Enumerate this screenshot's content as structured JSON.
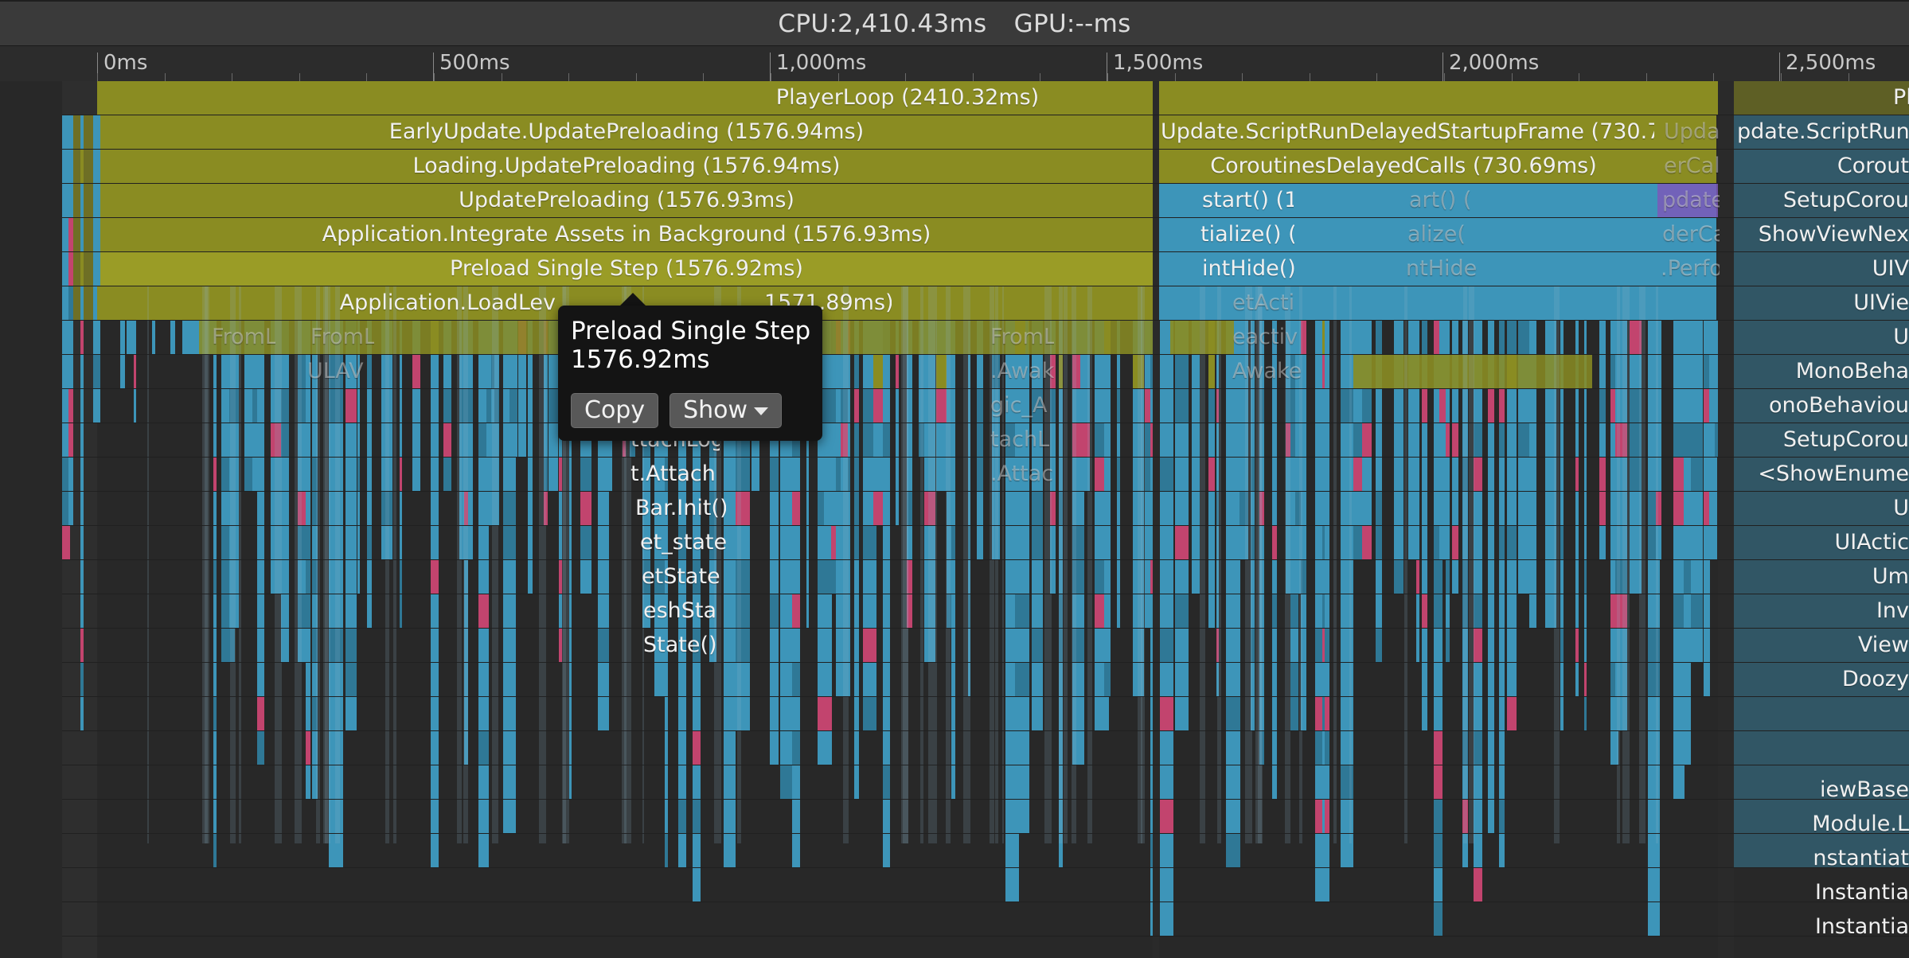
{
  "header": {
    "cpu": "CPU:2,410.43ms",
    "gpu": "GPU:--ms"
  },
  "ruler": {
    "labels": [
      "0ms",
      "500ms",
      "1,000ms",
      "1,500ms",
      "2,000ms",
      "2,500ms"
    ]
  },
  "bars": [
    {
      "name": "bar-playerloop",
      "text": "PlayerLoop (2410.32ms)"
    },
    {
      "name": "bar-playerloop-right",
      "text": "Pl"
    },
    {
      "name": "bar-earlyupdate",
      "text": "EarlyUpdate.UpdatePreloading (1576.94ms)"
    },
    {
      "name": "bar-scriptrun",
      "text": "Update.ScriptRunDelayedStartupFrame (730.70"
    },
    {
      "name": "bar-upda",
      "text": "Upda"
    },
    {
      "name": "bar-scriptrun-right",
      "text": "pdate.ScriptRun"
    },
    {
      "name": "bar-loading",
      "text": "Loading.UpdatePreloading (1576.94ms)"
    },
    {
      "name": "bar-coroutines",
      "text": "CoroutinesDelayedCalls (730.69ms)"
    },
    {
      "name": "bar-ercal",
      "text": "erCal"
    },
    {
      "name": "bar-corout-right",
      "text": "Corout"
    },
    {
      "name": "bar-updatepreloading",
      "text": "UpdatePreloading (1576.93ms)"
    },
    {
      "name": "bar-start",
      "text": "start() (1"
    },
    {
      "name": "bar-art",
      "text": "art() ("
    },
    {
      "name": "bar-pdate",
      "text": "pdate"
    },
    {
      "name": "bar-setupcorou-right",
      "text": "SetupCorou"
    },
    {
      "name": "bar-integrate",
      "text": "Application.Integrate Assets in Background (1576.93ms)"
    },
    {
      "name": "bar-tialize",
      "text": "tialize() ("
    },
    {
      "name": "bar-alize",
      "text": "alize("
    },
    {
      "name": "bar-derca",
      "text": "derCa"
    },
    {
      "name": "bar-showviewnex-right",
      "text": "ShowViewNex"
    },
    {
      "name": "bar-preloadsinglestep",
      "text": "Preload Single Step (1576.92ms)"
    },
    {
      "name": "bar-inthide",
      "text": "intHide()"
    },
    {
      "name": "bar-nthide",
      "text": "ntHide"
    },
    {
      "name": "bar-perfo",
      "text": ".Perfo"
    },
    {
      "name": "bar-uiv-right",
      "text": "UIV"
    },
    {
      "name": "bar-loadlevel",
      "text": "Application.LoadLev"
    },
    {
      "name": "bar-loadlevel-tail",
      "text": "1571.89ms)"
    },
    {
      "name": "bar-etacti",
      "text": "etActi"
    },
    {
      "name": "bar-uivie-right",
      "text": "UIVie"
    },
    {
      "name": "bar-froml-1",
      "text": "FromL"
    },
    {
      "name": "bar-froml-2",
      "text": "FromL"
    },
    {
      "name": "bar-froml-3",
      "text": "FromL"
    },
    {
      "name": "bar-eactiv",
      "text": "eactiv"
    },
    {
      "name": "bar-u-right",
      "text": "U"
    },
    {
      "name": "bar-ulav",
      "text": "ULAV"
    },
    {
      "name": "bar-awak",
      "text": ".Awak"
    },
    {
      "name": "bar-awake",
      "text": "Awake"
    },
    {
      "name": "bar-monobeha-right",
      "text": "MonoBeha"
    },
    {
      "name": "bar-gic-a",
      "text": "gic_A"
    },
    {
      "name": "bar-onobehaviou-right",
      "text": "onoBehaviou"
    },
    {
      "name": "bar-ttachlog",
      "text": "ttachLog"
    },
    {
      "name": "bar-tachl",
      "text": "tachL"
    },
    {
      "name": "bar-setupcorou-right-2",
      "text": "SetupCorou"
    },
    {
      "name": "bar-tattach",
      "text": "t.Attach"
    },
    {
      "name": "bar-attac",
      "text": ".Attac"
    },
    {
      "name": "bar-showenume-right",
      "text": "<ShowEnume"
    },
    {
      "name": "bar-barinit",
      "text": "Bar.Init()"
    },
    {
      "name": "bar-u-right-2",
      "text": "U"
    },
    {
      "name": "bar-etstate",
      "text": "et_state"
    },
    {
      "name": "bar-uiactic-right",
      "text": "UIActic"
    },
    {
      "name": "bar-etstate2",
      "text": "etState"
    },
    {
      "name": "bar-um-right",
      "text": "Um"
    },
    {
      "name": "bar-eshsta",
      "text": "eshSta"
    },
    {
      "name": "bar-inv-right",
      "text": "Inv"
    },
    {
      "name": "bar-state",
      "text": "State()"
    },
    {
      "name": "bar-view-right",
      "text": "View"
    },
    {
      "name": "bar-doozy-right",
      "text": "Doozy"
    },
    {
      "name": "bar-iewbase-right",
      "text": "iewBase"
    },
    {
      "name": "bar-module-right",
      "text": "Module.L"
    },
    {
      "name": "bar-nstantia-right",
      "text": "nstantiat"
    },
    {
      "name": "bar-instantia-right",
      "text": "Instantia"
    },
    {
      "name": "bar-instantia-right-2",
      "text": "Instantia"
    }
  ],
  "tooltip": {
    "name": "Preload Single Step",
    "time": "1576.92ms",
    "copy_label": "Copy",
    "show_label": "Show"
  },
  "colors": {
    "olive": "#8a8c22",
    "olive_bright": "#9a9c26",
    "blue": "#3d95b9",
    "blue_dark": "#2f7896",
    "magenta": "#c2446e",
    "background": "#282828"
  }
}
